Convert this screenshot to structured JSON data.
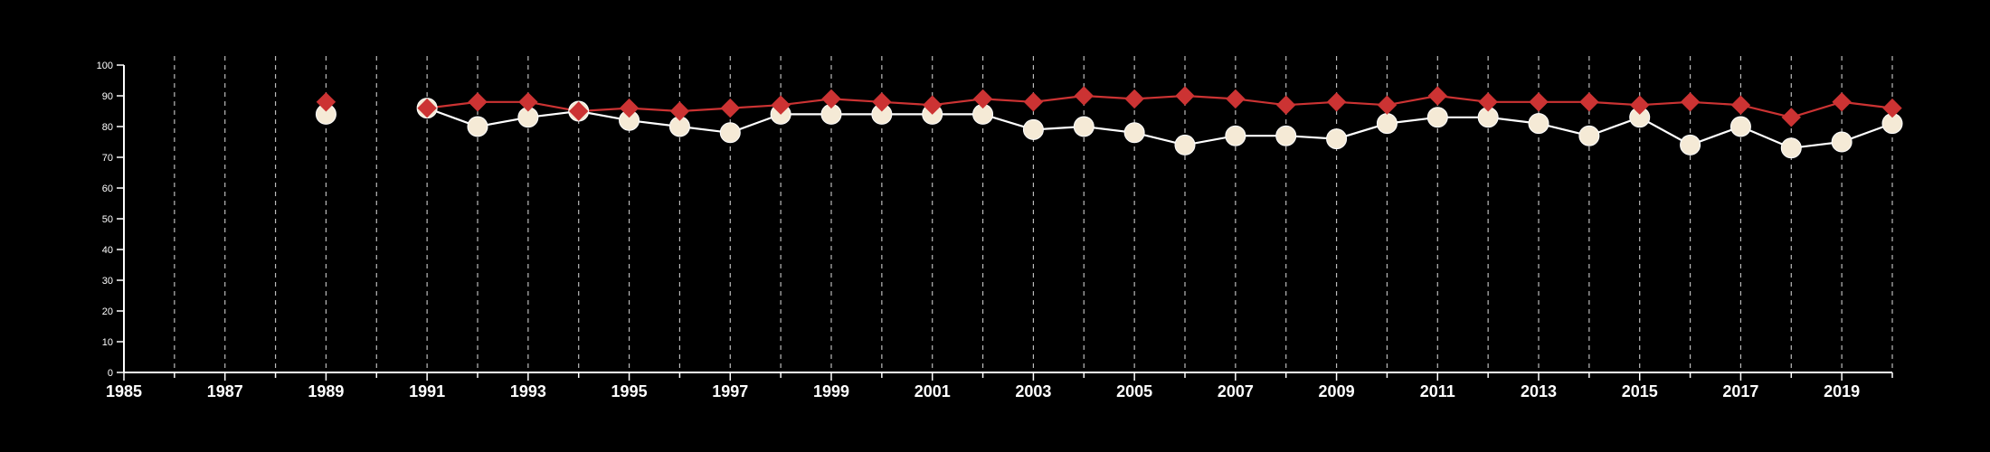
{
  "chart_data": {
    "type": "line",
    "title": "",
    "xlabel": "",
    "ylabel": "",
    "xlim": [
      1985,
      2020
    ],
    "ylim": [
      0,
      100
    ],
    "x_ticks": [
      1985,
      1987,
      1989,
      1991,
      1993,
      1995,
      1997,
      1999,
      2001,
      2003,
      2005,
      2007,
      2009,
      2011,
      2013,
      2015,
      2017,
      2019
    ],
    "x_tick_labels": [
      "1985",
      "1987",
      "1989",
      "1991",
      "1993",
      "1995",
      "1997",
      "1999",
      "2001",
      "2003",
      "2005",
      "2007",
      "2009",
      "2011",
      "2013",
      "2015",
      "2017",
      "2019"
    ],
    "y_ticks": [
      0,
      10,
      20,
      30,
      40,
      50,
      60,
      70,
      80,
      90,
      100
    ],
    "y_tick_labels": [
      "0",
      "10",
      "20",
      "30",
      "40",
      "50",
      "60",
      "70",
      "80",
      "90",
      "100"
    ],
    "vertical_gridlines": true,
    "background": "#000000",
    "series": [
      {
        "marker": "diamond",
        "color": "#cc3333",
        "points": [
          {
            "x": 1989,
            "y": 88
          },
          {
            "x": 1991,
            "y": 86
          },
          {
            "x": 1992,
            "y": 88
          },
          {
            "x": 1993,
            "y": 88
          },
          {
            "x": 1994,
            "y": 85
          },
          {
            "x": 1995,
            "y": 86
          },
          {
            "x": 1996,
            "y": 85
          },
          {
            "x": 1997,
            "y": 86
          },
          {
            "x": 1998,
            "y": 87
          },
          {
            "x": 1999,
            "y": 89
          },
          {
            "x": 2000,
            "y": 88
          },
          {
            "x": 2001,
            "y": 87
          },
          {
            "x": 2002,
            "y": 89
          },
          {
            "x": 2003,
            "y": 88
          },
          {
            "x": 2004,
            "y": 90
          },
          {
            "x": 2005,
            "y": 89
          },
          {
            "x": 2006,
            "y": 90
          },
          {
            "x": 2007,
            "y": 89
          },
          {
            "x": 2008,
            "y": 87
          },
          {
            "x": 2009,
            "y": 88
          },
          {
            "x": 2010,
            "y": 87
          },
          {
            "x": 2011,
            "y": 90
          },
          {
            "x": 2012,
            "y": 88
          },
          {
            "x": 2013,
            "y": 88
          },
          {
            "x": 2014,
            "y": 88
          },
          {
            "x": 2015,
            "y": 87
          },
          {
            "x": 2016,
            "y": 88
          },
          {
            "x": 2017,
            "y": 87
          },
          {
            "x": 2018,
            "y": 83
          },
          {
            "x": 2019,
            "y": 88
          },
          {
            "x": 2020,
            "y": 86
          }
        ]
      },
      {
        "marker": "circle",
        "color": "#f5ead6",
        "line_color": "#ffffff",
        "points": [
          {
            "x": 1989,
            "y": 84
          },
          {
            "x": 1991,
            "y": 86
          },
          {
            "x": 1992,
            "y": 80
          },
          {
            "x": 1993,
            "y": 83
          },
          {
            "x": 1994,
            "y": 85
          },
          {
            "x": 1995,
            "y": 82
          },
          {
            "x": 1996,
            "y": 80
          },
          {
            "x": 1997,
            "y": 78
          },
          {
            "x": 1998,
            "y": 84
          },
          {
            "x": 1999,
            "y": 84
          },
          {
            "x": 2000,
            "y": 84
          },
          {
            "x": 2001,
            "y": 84
          },
          {
            "x": 2002,
            "y": 84
          },
          {
            "x": 2003,
            "y": 79
          },
          {
            "x": 2004,
            "y": 80
          },
          {
            "x": 2005,
            "y": 78
          },
          {
            "x": 2006,
            "y": 74
          },
          {
            "x": 2007,
            "y": 77
          },
          {
            "x": 2008,
            "y": 77
          },
          {
            "x": 2009,
            "y": 76
          },
          {
            "x": 2010,
            "y": 81
          },
          {
            "x": 2011,
            "y": 83
          },
          {
            "x": 2012,
            "y": 83
          },
          {
            "x": 2013,
            "y": 81
          },
          {
            "x": 2014,
            "y": 77
          },
          {
            "x": 2015,
            "y": 83
          },
          {
            "x": 2016,
            "y": 74
          },
          {
            "x": 2017,
            "y": 80
          },
          {
            "x": 2018,
            "y": 73
          },
          {
            "x": 2019,
            "y": 75
          },
          {
            "x": 2020,
            "y": 81
          }
        ]
      }
    ]
  }
}
